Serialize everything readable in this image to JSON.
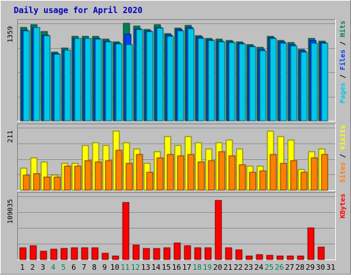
{
  "chart_data": {
    "type": "bar",
    "title": "Daily usage for April 2020",
    "categories": [
      "1",
      "2",
      "3",
      "4",
      "5",
      "6",
      "7",
      "8",
      "9",
      "10",
      "11",
      "12",
      "13",
      "14",
      "15",
      "16",
      "17",
      "18",
      "19",
      "20",
      "21",
      "22",
      "23",
      "24",
      "25",
      "26",
      "27",
      "28",
      "29",
      "30",
      "31"
    ],
    "weekend_days": [
      "4",
      "5",
      "11",
      "12",
      "18",
      "19",
      "25",
      "26"
    ],
    "panels": [
      {
        "id": "hits-panel",
        "ymax_label": "1359",
        "ylim": [
          0,
          1359
        ],
        "axis_label_parts": [
          {
            "text": "Pages",
            "color": "#00c8e8"
          },
          {
            "text": " / ",
            "color": "#000000"
          },
          {
            "text": "Files",
            "color": "#0040ff"
          },
          {
            "text": " / ",
            "color": "#000000"
          },
          {
            "text": "Hits",
            "color": "#008060"
          }
        ],
        "series": [
          {
            "name": "Hits",
            "color": "#00805c",
            "values": [
              1300,
              1340,
              1240,
              960,
              1010,
              1180,
              1180,
              1180,
              1140,
              1100,
              1360,
              1320,
              1270,
              1340,
              1220,
              1290,
              1330,
              1190,
              1150,
              1140,
              1120,
              1100,
              1060,
              1020,
              1180,
              1120,
              1090,
              1000,
              1150,
              1110,
              0
            ]
          },
          {
            "name": "Files",
            "color": "#0040ff",
            "values": [
              1260,
              1300,
              1200,
              940,
              990,
              1150,
              1150,
              1150,
              1110,
              1080,
              1210,
              1280,
              1250,
              1300,
              1200,
              1270,
              1300,
              1170,
              1130,
              1110,
              1100,
              1080,
              1040,
              1000,
              1160,
              1100,
              1060,
              980,
              1120,
              1090,
              0
            ]
          },
          {
            "name": "Pages",
            "color": "#00c8e8",
            "values": [
              1250,
              1300,
              1190,
              930,
              990,
              1150,
              1150,
              1140,
              1100,
              1070,
              1060,
              1270,
              1240,
              1290,
              1180,
              1250,
              1280,
              1150,
              1120,
              1100,
              1090,
              1070,
              1030,
              980,
              1150,
              1080,
              1040,
              960,
              1080,
              1080,
              0
            ]
          }
        ]
      },
      {
        "id": "visits-panel",
        "ymax_label": "211",
        "ylim": [
          0,
          211
        ],
        "axis_label_parts": [
          {
            "text": "Sites",
            "color": "#ff8000"
          },
          {
            "text": " / ",
            "color": "#000000"
          },
          {
            "text": "Visits",
            "color": "#ffff00"
          }
        ],
        "series": [
          {
            "name": "Visits",
            "color": "#ffff00",
            "values": [
              75,
              110,
              95,
              50,
              90,
              90,
              150,
              160,
              150,
              200,
              160,
              140,
              90,
              130,
              180,
              150,
              180,
              160,
              140,
              160,
              170,
              140,
              80,
              80,
              200,
              180,
              170,
              70,
              130,
              140,
              0
            ]
          },
          {
            "name": "Sites",
            "color": "#ff8000",
            "values": [
              50,
              55,
              45,
              45,
              80,
              80,
              100,
              95,
              100,
              135,
              90,
              120,
              60,
              110,
              120,
              115,
              120,
              95,
              100,
              130,
              115,
              85,
              60,
              65,
              120,
              90,
              100,
              60,
              110,
              120,
              0
            ]
          }
        ]
      },
      {
        "id": "kbytes-panel",
        "ymax_label": "109035",
        "ylim": [
          0,
          109035
        ],
        "axis_label_parts": [
          {
            "text": "KBytes",
            "color": "#ff0000"
          }
        ],
        "series": [
          {
            "name": "KBytes",
            "color": "#ff0000",
            "values": [
              20000,
              24000,
              14000,
              18000,
              19000,
              20000,
              20000,
              20000,
              11000,
              6000,
              98000,
              25000,
              19000,
              19000,
              20000,
              28000,
              24000,
              20000,
              20000,
              102000,
              20000,
              17000,
              6000,
              8000,
              7000,
              6000,
              6000,
              6000,
              54000,
              21000,
              0
            ]
          }
        ]
      }
    ]
  }
}
